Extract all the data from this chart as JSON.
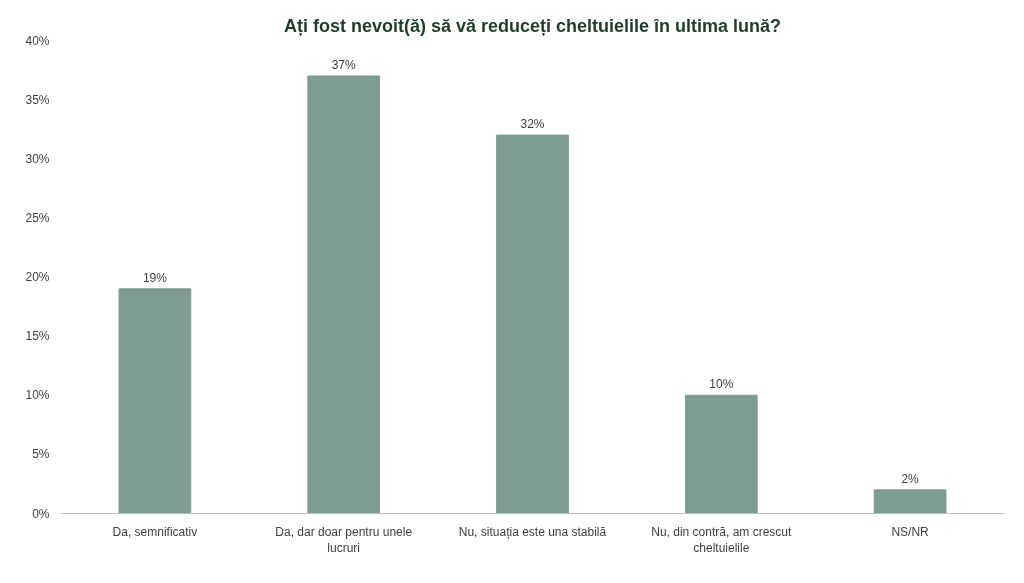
{
  "chart_data": {
    "type": "bar",
    "title": "Ați fost nevoit(ă) să vă reduceți cheltuielile în ultima lună?",
    "categories": [
      "Da, semnificativ",
      "Da, dar doar pentru unele lucruri",
      "Nu, situația este una stabilă",
      "Nu, din contră, am crescut cheltuielile",
      "NS/NR"
    ],
    "values": [
      19,
      37,
      32,
      10,
      2
    ],
    "value_labels": [
      "19%",
      "37%",
      "32%",
      "10%",
      "2%"
    ],
    "color": "#7f9c94",
    "ylim": [
      0,
      40
    ],
    "yticks": [
      {
        "value": 0,
        "label": "0%"
      },
      {
        "value": 5,
        "label": "5%"
      },
      {
        "value": 10,
        "label": "10%"
      },
      {
        "value": 15,
        "label": "15%"
      },
      {
        "value": 20,
        "label": "20%"
      },
      {
        "value": 25,
        "label": "25%"
      },
      {
        "value": 30,
        "label": "30%"
      },
      {
        "value": 35,
        "label": "35%"
      },
      {
        "value": 40,
        "label": "40%"
      }
    ],
    "grid": false
  }
}
